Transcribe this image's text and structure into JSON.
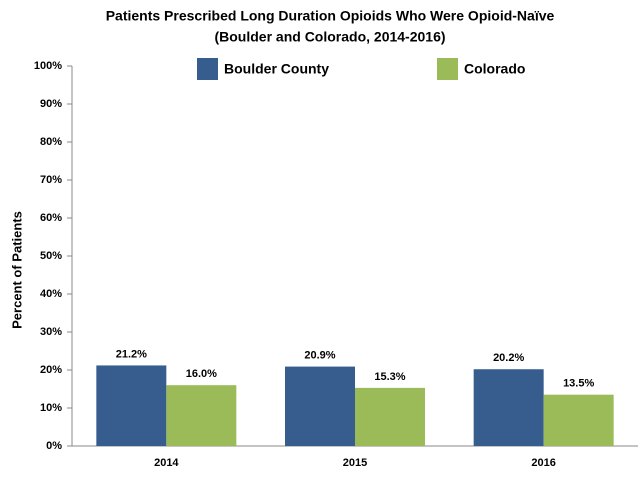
{
  "chart_data": {
    "type": "bar",
    "title": "Patients Prescribed Long Duration Opioids Who Were Opioid-Naïve",
    "subtitle": "(Boulder and Colorado, 2014-2016)",
    "y_label": "Percent of Patients",
    "categories": [
      "2014",
      "2015",
      "2016"
    ],
    "series": [
      {
        "name": "Boulder County",
        "color": "#375d8f",
        "values": [
          21.2,
          20.9,
          20.2
        ],
        "value_labels": [
          "21.2%",
          "20.9%",
          "20.2%"
        ]
      },
      {
        "name": "Colorado",
        "color": "#9bbb59",
        "values": [
          16.0,
          15.3,
          13.5
        ],
        "value_labels": [
          "16.0%",
          "15.3%",
          "13.5%"
        ]
      }
    ],
    "ylim": [
      0,
      100
    ],
    "yticks": [
      {
        "value": 0,
        "label": "0%"
      },
      {
        "value": 10,
        "label": "10%"
      },
      {
        "value": 20,
        "label": "20%"
      },
      {
        "value": 30,
        "label": "30%"
      },
      {
        "value": 40,
        "label": "40%"
      },
      {
        "value": 50,
        "label": "50%"
      },
      {
        "value": 60,
        "label": "60%"
      },
      {
        "value": 70,
        "label": "70%"
      },
      {
        "value": 80,
        "label": "80%"
      },
      {
        "value": 90,
        "label": "90%"
      },
      {
        "value": 100,
        "label": "100%"
      }
    ],
    "legend": "top"
  }
}
